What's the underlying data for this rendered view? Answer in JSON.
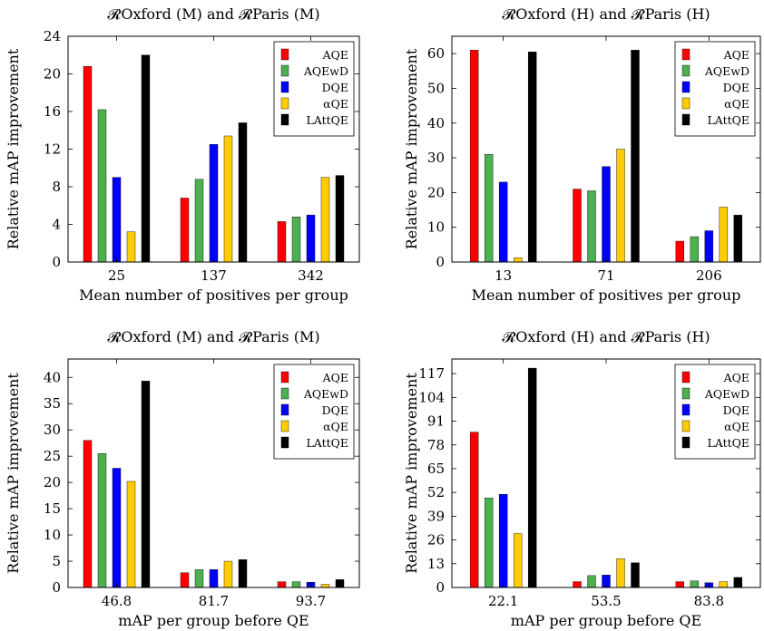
{
  "legend_labels": [
    "AQE",
    "AQEwD",
    "DQE",
    "αQE",
    "LAttQE"
  ],
  "colors": [
    "#ff0000",
    "#4caf50",
    "#0000ff",
    "#ffcc00",
    "#000000"
  ],
  "chart_data": [
    {
      "type": "bar",
      "title": "𝓡Oxford (M) and 𝓡Paris (M)",
      "xlabel": "Mean number of positives per group",
      "ylabel": "Relative mAP improvement",
      "categories": [
        "25",
        "137",
        "342"
      ],
      "ylim": [
        0,
        24
      ],
      "yticks": [
        0,
        4,
        8,
        12,
        16,
        20,
        24
      ],
      "grid": false,
      "legend_position": "top-right",
      "series": [
        {
          "name": "AQE",
          "values": [
            20.8,
            6.8,
            4.3
          ]
        },
        {
          "name": "AQEwD",
          "values": [
            16.2,
            8.8,
            4.8
          ]
        },
        {
          "name": "DQE",
          "values": [
            9.0,
            12.5,
            5.0
          ]
        },
        {
          "name": "αQE",
          "values": [
            3.2,
            13.4,
            9.0
          ]
        },
        {
          "name": "LAttQE",
          "values": [
            22.0,
            14.8,
            9.2
          ]
        }
      ]
    },
    {
      "type": "bar",
      "title": "𝓡Oxford (H) and 𝓡Paris (H)",
      "xlabel": "Mean number of positives per group",
      "ylabel": "Relative mAP improvement",
      "categories": [
        "13",
        "71",
        "206"
      ],
      "ylim": [
        0,
        65
      ],
      "yticks": [
        0,
        10,
        20,
        30,
        40,
        50,
        60
      ],
      "grid": false,
      "legend_position": "top-right",
      "series": [
        {
          "name": "AQE",
          "values": [
            61.0,
            21.0,
            6.0
          ]
        },
        {
          "name": "AQEwD",
          "values": [
            31.0,
            20.5,
            7.3
          ]
        },
        {
          "name": "DQE",
          "values": [
            23.0,
            27.5,
            9.0
          ]
        },
        {
          "name": "αQE",
          "values": [
            1.2,
            32.5,
            15.8
          ]
        },
        {
          "name": "LAttQE",
          "values": [
            60.5,
            61.0,
            13.5
          ]
        }
      ]
    },
    {
      "type": "bar",
      "title": "𝓡Oxford (M) and 𝓡Paris (M)",
      "xlabel": "mAP per group before QE",
      "ylabel": "Relative mAP improvement",
      "categories": [
        "46.8",
        "81.7",
        "93.7"
      ],
      "ylim": [
        0,
        43.5
      ],
      "yticks": [
        0,
        5,
        10,
        15,
        20,
        25,
        30,
        35,
        40
      ],
      "grid": false,
      "legend_position": "top-right",
      "series": [
        {
          "name": "AQE",
          "values": [
            28.0,
            2.8,
            1.1
          ]
        },
        {
          "name": "AQEwD",
          "values": [
            25.5,
            3.4,
            1.1
          ]
        },
        {
          "name": "DQE",
          "values": [
            22.7,
            3.4,
            1.0
          ]
        },
        {
          "name": "αQE",
          "values": [
            20.2,
            5.0,
            0.6
          ]
        },
        {
          "name": "LAttQE",
          "values": [
            39.3,
            5.3,
            1.5
          ]
        }
      ]
    },
    {
      "type": "bar",
      "title": "𝓡Oxford (H) and 𝓡Paris (H)",
      "xlabel": "mAP per group before QE",
      "ylabel": "Relative mAP improvement",
      "categories": [
        "22.1",
        "53.5",
        "83.8"
      ],
      "ylim": [
        0,
        125
      ],
      "yticks": [
        0,
        13,
        26,
        39,
        52,
        65,
        78,
        91,
        104,
        117
      ],
      "grid": false,
      "legend_position": "top-right",
      "series": [
        {
          "name": "AQE",
          "values": [
            85.0,
            3.2,
            3.2
          ]
        },
        {
          "name": "AQEwD",
          "values": [
            49.0,
            6.5,
            3.6
          ]
        },
        {
          "name": "DQE",
          "values": [
            51.0,
            6.8,
            2.6
          ]
        },
        {
          "name": "αQE",
          "values": [
            29.5,
            15.8,
            3.2
          ]
        },
        {
          "name": "LAttQE",
          "values": [
            120.0,
            13.5,
            5.5
          ]
        }
      ]
    }
  ]
}
